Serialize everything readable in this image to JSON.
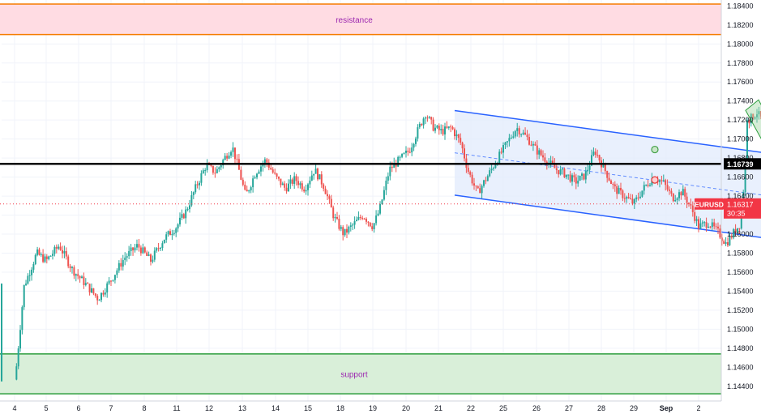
{
  "chart_data": {
    "type": "candlestick",
    "symbol": "EURUSD",
    "ylim": [
      1.143,
      1.1845
    ],
    "y_ticks": [
      "1.18400",
      "1.18200",
      "1.18000",
      "1.17800",
      "1.17600",
      "1.17400",
      "1.17200",
      "1.17000",
      "1.16800",
      "1.16600",
      "1.16400",
      "1.16200",
      "1.16000",
      "1.15800",
      "1.15600",
      "1.15400",
      "1.15200",
      "1.15000",
      "1.14800",
      "1.14600",
      "1.14400"
    ],
    "x_ticks": [
      "4",
      "5",
      "6",
      "7",
      "8",
      "11",
      "12",
      "13",
      "14",
      "15",
      "18",
      "19",
      "20",
      "21",
      "22",
      "25",
      "26",
      "27",
      "28",
      "29",
      "Sep",
      "2"
    ],
    "price_levels": {
      "key_level": {
        "value": 1.16739,
        "label": "1.16739",
        "color": "#000000"
      },
      "current": {
        "value": 1.16317,
        "symbol": "EURUSD",
        "price": "1.16317",
        "countdown": "30:35",
        "color": "#f23645"
      }
    },
    "zones": {
      "resistance": {
        "label": "resistance",
        "from": 1.181,
        "to": 1.1842,
        "fill": "#ffdce3",
        "border": "#f57c00",
        "text_color": "#9c27b0"
      },
      "support": {
        "label": "support",
        "from": 1.1432,
        "to": 1.1474,
        "fill": "#d9efd9",
        "border": "#2e9e3e",
        "text_color": "#9c27b0"
      }
    },
    "channel": {
      "color": "#2962ff",
      "fill": "#e3ecfd",
      "upper": [
        [
          13.5,
          1.173
        ],
        [
          27.9,
          1.1663
        ]
      ],
      "lower": [
        [
          13.5,
          1.1641
        ],
        [
          27.9,
          1.1573
        ]
      ]
    },
    "arrows": [
      {
        "from": [
          26.9,
          1.1637
        ],
        "to": [
          27.45,
          1.1722
        ]
      },
      {
        "from": [
          26.9,
          1.1637
        ],
        "to": [
          27.05,
          1.167
        ]
      },
      {
        "from": [
          26.9,
          1.1628
        ],
        "to": [
          27.35,
          1.158
        ]
      }
    ],
    "colors": {
      "up": "#26a69a",
      "down": "#ef5350",
      "grid": "#f0f3fa"
    },
    "closes": [
      [
        0.0,
        1.144
      ],
      [
        0.3,
        1.1545
      ],
      [
        0.7,
        1.158
      ],
      [
        1.0,
        1.1572
      ],
      [
        1.4,
        1.1588
      ],
      [
        1.8,
        1.1563
      ],
      [
        2.2,
        1.1548
      ],
      [
        2.6,
        1.1532
      ],
      [
        3.0,
        1.1552
      ],
      [
        3.4,
        1.1575
      ],
      [
        3.8,
        1.1588
      ],
      [
        4.2,
        1.1572
      ],
      [
        4.6,
        1.1595
      ],
      [
        5.0,
        1.1608
      ],
      [
        5.3,
        1.1625
      ],
      [
        5.6,
        1.165
      ],
      [
        5.9,
        1.1672
      ],
      [
        6.2,
        1.1665
      ],
      [
        6.5,
        1.1682
      ],
      [
        6.7,
        1.1692
      ],
      [
        6.9,
        1.1667
      ],
      [
        7.1,
        1.164
      ],
      [
        7.4,
        1.1665
      ],
      [
        7.7,
        1.1678
      ],
      [
        8.0,
        1.166
      ],
      [
        8.3,
        1.1648
      ],
      [
        8.6,
        1.1658
      ],
      [
        8.9,
        1.1648
      ],
      [
        9.2,
        1.1668
      ],
      [
        9.5,
        1.165
      ],
      [
        9.8,
        1.1618
      ],
      [
        10.1,
        1.16
      ],
      [
        10.4,
        1.161
      ],
      [
        10.7,
        1.162
      ],
      [
        11.0,
        1.1608
      ],
      [
        11.2,
        1.1625
      ],
      [
        11.5,
        1.1668
      ],
      [
        11.8,
        1.1678
      ],
      [
        12.1,
        1.1688
      ],
      [
        12.4,
        1.1712
      ],
      [
        12.6,
        1.1727
      ],
      [
        12.85,
        1.1712
      ],
      [
        13.1,
        1.1708
      ],
      [
        13.4,
        1.1712
      ],
      [
        13.7,
        1.1695
      ],
      [
        13.9,
        1.1668
      ],
      [
        14.2,
        1.1643
      ],
      [
        14.5,
        1.166
      ],
      [
        14.8,
        1.1678
      ],
      [
        15.1,
        1.1695
      ],
      [
        15.4,
        1.1712
      ],
      [
        15.7,
        1.1702
      ],
      [
        16.0,
        1.1688
      ],
      [
        16.3,
        1.1678
      ],
      [
        16.6,
        1.1668
      ],
      [
        16.9,
        1.1663
      ],
      [
        17.2,
        1.1655
      ],
      [
        17.5,
        1.1662
      ],
      [
        17.8,
        1.1688
      ],
      [
        18.1,
        1.1668
      ],
      [
        18.4,
        1.1648
      ],
      [
        18.7,
        1.164
      ],
      [
        19.0,
        1.1632
      ],
      [
        19.3,
        1.1648
      ],
      [
        19.6,
        1.166
      ],
      [
        19.9,
        1.1655
      ],
      [
        20.2,
        1.1638
      ],
      [
        20.5,
        1.1645
      ],
      [
        20.8,
        1.1625
      ],
      [
        21.0,
        1.1608
      ],
      [
        21.3,
        1.1612
      ],
      [
        21.6,
        1.1602
      ],
      [
        21.85,
        1.159
      ],
      [
        22.05,
        1.16
      ],
      [
        22.3,
        1.1612
      ],
      [
        22.55,
        1.172
      ],
      [
        22.8,
        1.1728
      ],
      [
        23.0,
        1.1718
      ],
      [
        23.2,
        1.1705
      ],
      [
        23.4,
        1.17
      ],
      [
        23.6,
        1.1692
      ],
      [
        23.8,
        1.1705
      ],
      [
        24.0,
        1.1685
      ],
      [
        24.2,
        1.1668
      ],
      [
        24.4,
        1.1645
      ],
      [
        24.55,
        1.1618
      ],
      [
        24.7,
        1.161
      ],
      [
        24.85,
        1.1625
      ],
      [
        25.0,
        1.1642
      ],
      [
        25.15,
        1.1635
      ],
      [
        25.3,
        1.1631
      ]
    ],
    "event_icons": [
      {
        "x": 24.7,
        "type": "lightning"
      },
      {
        "x": 25.0,
        "type": "us-flag"
      },
      {
        "x": 25.75,
        "type": "calendar"
      },
      {
        "x": 27.5,
        "type": "us-flag"
      },
      {
        "x": 28.55,
        "type": "calendar"
      },
      {
        "x": 28.75,
        "type": "calendar"
      },
      {
        "x": 28.9,
        "type": "calendar"
      },
      {
        "x": 28.95,
        "type": "calendar-stack"
      }
    ],
    "side_markers": [
      {
        "value": 1.1689,
        "color": "#43a047",
        "fill": "#c8e6c9"
      },
      {
        "value": 1.1657,
        "color": "#e53935",
        "fill": "#ffcdd2"
      }
    ]
  }
}
